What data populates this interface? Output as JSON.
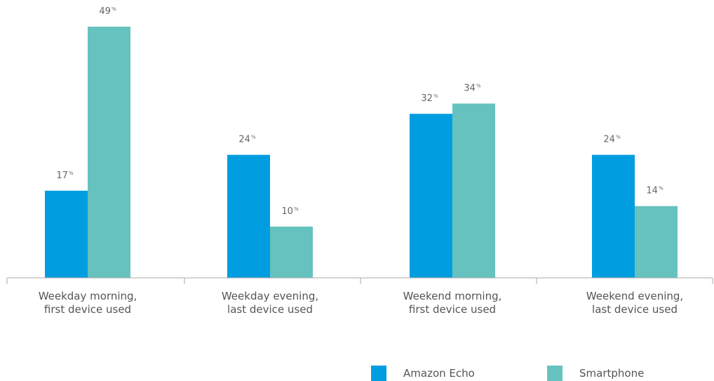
{
  "chart_data": {
    "type": "bar",
    "categories": [
      [
        "Weekday morning,",
        "first device used"
      ],
      [
        "Weekday evening,",
        "last device used"
      ],
      [
        "Weekend morning,",
        "first device used"
      ],
      [
        "Weekend evening,",
        "last device used"
      ]
    ],
    "series": [
      {
        "name": "Amazon Echo",
        "color": "#009ee0",
        "values": [
          17,
          24,
          32,
          24
        ]
      },
      {
        "name": "Smartphone",
        "color": "#66c2be",
        "values": [
          49,
          10,
          34,
          14
        ]
      }
    ],
    "value_suffix": "%",
    "title": "",
    "xlabel": "",
    "ylabel": "",
    "ylim": [
      0,
      49
    ],
    "grid": false,
    "legend_position": "bottom-right"
  }
}
